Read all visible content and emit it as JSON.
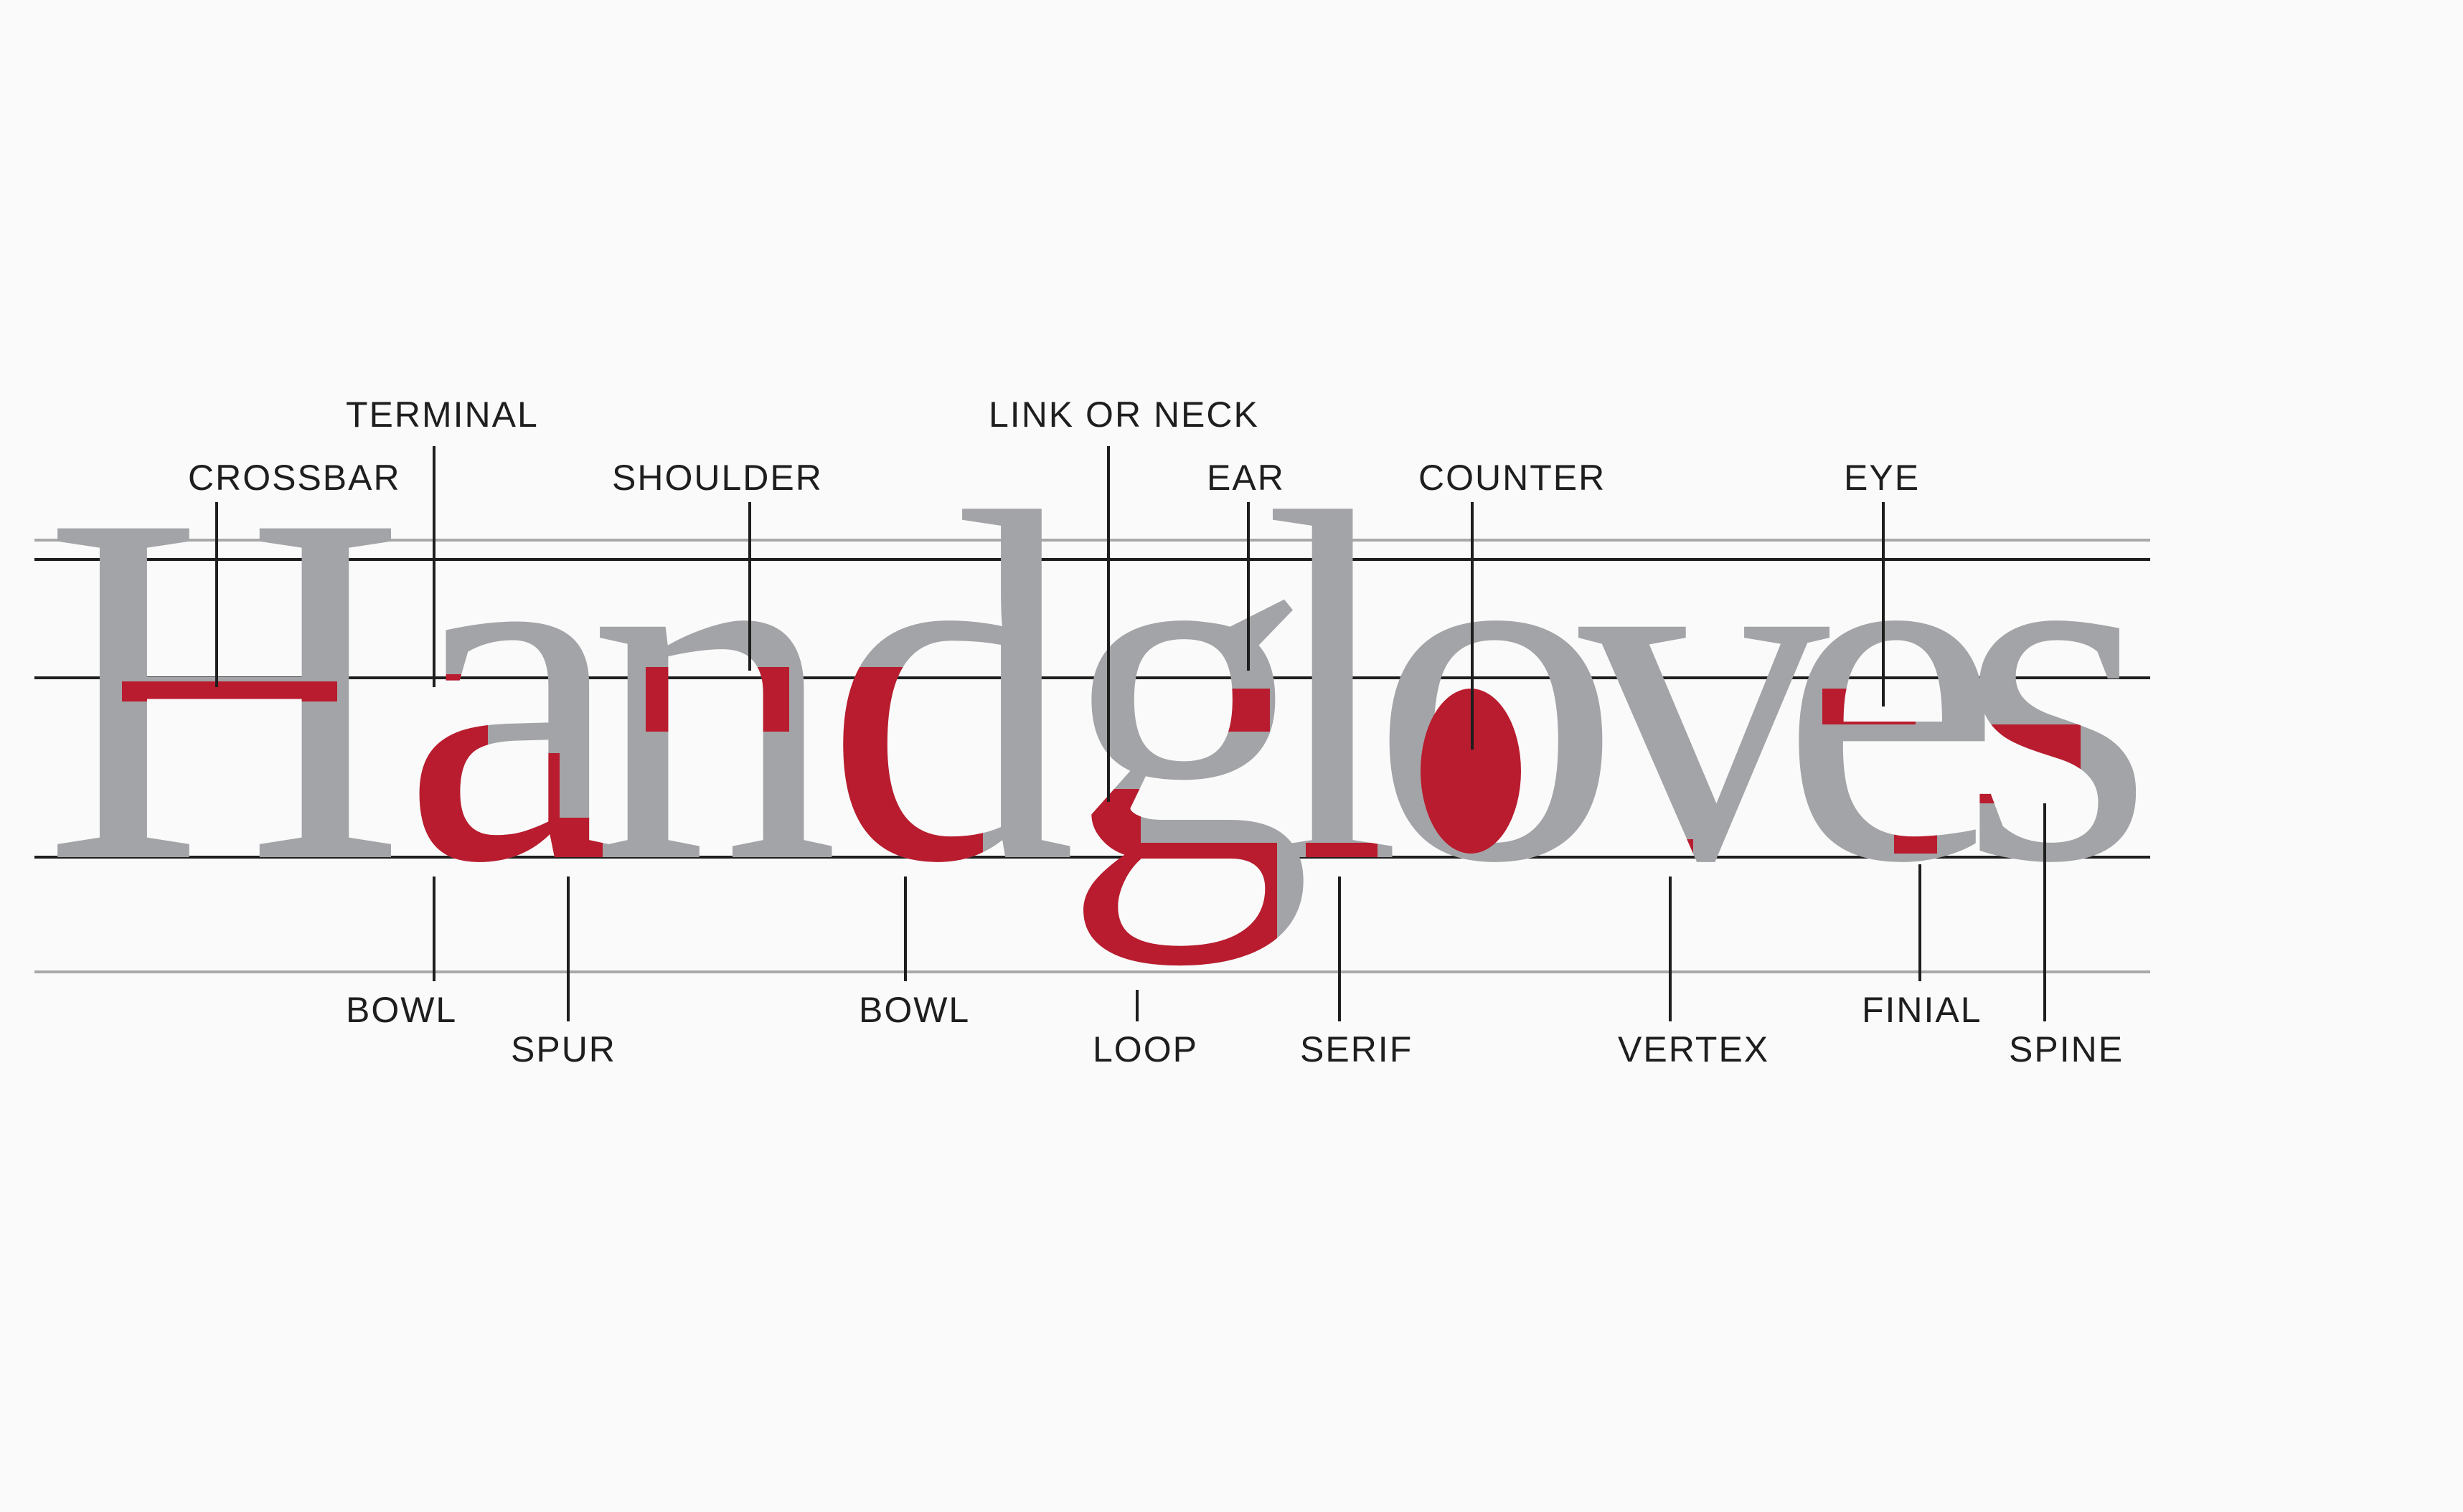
{
  "word": "Handgloves",
  "colors": {
    "background": "#fafafa",
    "glyph_gray": "#a3a4a7",
    "highlight_red": "#b91c2e",
    "line_dark": "#1e1e1e",
    "line_light": "#a8a8a8"
  },
  "guidelines": [
    "ascender-line",
    "cap-line",
    "x-height-line",
    "baseline",
    "descender-line"
  ],
  "labels_top": [
    {
      "text": "TERMINAL"
    },
    {
      "text": "CROSSBAR"
    },
    {
      "text": "SHOULDER"
    },
    {
      "text": "LINK OR NECK"
    },
    {
      "text": "EAR"
    },
    {
      "text": "COUNTER"
    },
    {
      "text": "EYE"
    }
  ],
  "labels_bottom": [
    {
      "text": "BOWL"
    },
    {
      "text": "SPUR"
    },
    {
      "text": "BOWL"
    },
    {
      "text": "LOOP"
    },
    {
      "text": "SERIF"
    },
    {
      "text": "VERTEX"
    },
    {
      "text": "FINIAL"
    },
    {
      "text": "SPINE"
    }
  ]
}
